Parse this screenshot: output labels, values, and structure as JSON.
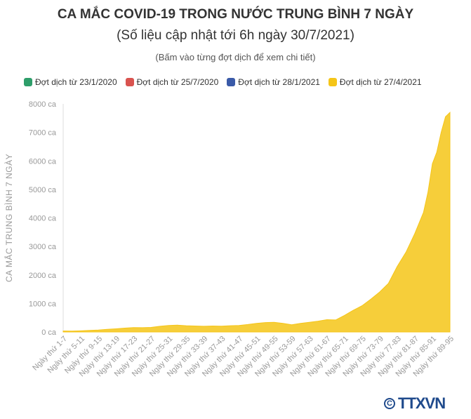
{
  "header": {
    "title": "CA MẮC COVID-19 TRONG NƯỚC TRUNG BÌNH 7 NGÀY",
    "subtitle": "(Số liệu cập nhật tới 6h ngày 30/7/2021)",
    "note": "(Bấm vào từng đợt dịch để xem chi tiết)"
  },
  "legend": [
    {
      "label": "Đợt dịch từ 23/1/2020",
      "color": "#2e9e6a"
    },
    {
      "label": "Đợt dịch từ 25/7/2020",
      "color": "#d9534f"
    },
    {
      "label": "Đợt dịch từ 28/1/2021",
      "color": "#3a5aa8"
    },
    {
      "label": "Đợt dịch từ 27/4/2021",
      "color": "#f5c518"
    }
  ],
  "logo": {
    "text": "TTXVN"
  },
  "chart_data": {
    "type": "area",
    "ylabel": "CA MẮC TRUNG BÌNH 7 NGÀY",
    "ylim": [
      0,
      8000
    ],
    "yticks": [
      {
        "value": 0,
        "label": "0 ca"
      },
      {
        "value": 1000,
        "label": "1000 ca"
      },
      {
        "value": 2000,
        "label": "2000 ca"
      },
      {
        "value": 3000,
        "label": "3000 ca"
      },
      {
        "value": 4000,
        "label": "4000 ca"
      },
      {
        "value": 5000,
        "label": "5000 ca"
      },
      {
        "value": 6000,
        "label": "6000 ca"
      },
      {
        "value": 7000,
        "label": "7000 ca"
      },
      {
        "value": 8000,
        "label": "8000 ca"
      }
    ],
    "categories": [
      "Ngày thứ 1-7",
      "Ngày thứ 5-11",
      "Ngày thứ 9-15",
      "Ngày thứ 13-19",
      "Ngày thứ 17-23",
      "Ngày thứ 21-27",
      "Ngày thứ 25-31",
      "Ngày thứ 29-35",
      "Ngày thứ 33-39",
      "Ngày thứ 37-43",
      "Ngày thứ 41-47",
      "Ngày thứ 45-51",
      "Ngày thứ 49-55",
      "Ngày thứ 53-59",
      "Ngày thứ 57-63",
      "Ngày thứ 61-67",
      "Ngày thứ 65-71",
      "Ngày thứ 69-75",
      "Ngày thứ 73-79",
      "Ngày thứ 77-83",
      "Ngày thứ 81-87",
      "Ngày thứ 85-91",
      "Ngày thứ 89-95"
    ],
    "series": [
      {
        "color": "#f5c518",
        "x": [
          1,
          3,
          5,
          7,
          9,
          11,
          13,
          15,
          17,
          19,
          21,
          23,
          25,
          27,
          29,
          31,
          33,
          35,
          37,
          39,
          41,
          43,
          45,
          47,
          49,
          51,
          53,
          55,
          57,
          59,
          61,
          63,
          65,
          67,
          69,
          71,
          73,
          75,
          77,
          79,
          81,
          83,
          84,
          85,
          86,
          87,
          88,
          89
        ],
        "y": [
          35,
          30,
          40,
          55,
          70,
          90,
          110,
          135,
          155,
          150,
          160,
          200,
          230,
          240,
          220,
          210,
          200,
          210,
          205,
          220,
          230,
          260,
          300,
          330,
          340,
          300,
          250,
          300,
          340,
          380,
          430,
          420,
          580,
          760,
          920,
          1150,
          1400,
          1700,
          2300,
          2800,
          3450,
          4200,
          4900,
          5900,
          6300,
          7000,
          7550,
          7700
        ]
      }
    ]
  }
}
